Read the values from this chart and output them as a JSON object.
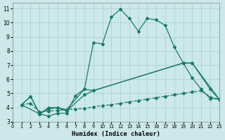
{
  "xlabel": "Humidex (Indice chaleur)",
  "bg_color": "#cce8e8",
  "grid_color": "#aad4d4",
  "line_color": "#1a7a6a",
  "xlim": [
    0,
    23
  ],
  "ylim": [
    3,
    11.4
  ],
  "xticks": [
    0,
    1,
    2,
    3,
    4,
    5,
    6,
    7,
    8,
    9,
    10,
    11,
    12,
    13,
    14,
    15,
    16,
    17,
    18,
    19,
    20,
    21,
    22,
    23
  ],
  "yticks": [
    3,
    4,
    5,
    6,
    7,
    8,
    9,
    10,
    11
  ],
  "curve1": {
    "x": [
      1,
      2,
      3,
      4,
      5,
      6,
      7,
      8,
      9,
      10,
      11,
      12,
      13,
      14,
      15,
      16,
      17,
      18,
      19,
      20,
      21,
      22,
      23
    ],
    "y": [
      4.2,
      4.8,
      3.55,
      3.4,
      3.6,
      3.6,
      4.85,
      5.3,
      8.6,
      8.5,
      10.4,
      10.95,
      10.3,
      9.4,
      10.3,
      10.2,
      9.8,
      8.3,
      7.15,
      6.1,
      5.3,
      4.65,
      4.6
    ]
  },
  "curve2": {
    "x": [
      1,
      2,
      3,
      4,
      5,
      6,
      8,
      9,
      19,
      20,
      22,
      23
    ],
    "y": [
      4.2,
      4.8,
      3.55,
      3.9,
      4.0,
      3.85,
      5.3,
      5.2,
      7.15,
      7.15,
      5.3,
      4.6
    ]
  },
  "curve3": {
    "x": [
      1,
      3,
      4,
      5,
      6,
      8,
      9,
      19,
      20,
      23
    ],
    "y": [
      4.2,
      3.55,
      4.0,
      4.0,
      3.75,
      4.9,
      5.2,
      7.15,
      7.15,
      4.6
    ]
  },
  "curve4": {
    "x": [
      1,
      2,
      3,
      4,
      5,
      6,
      7,
      8,
      9,
      10,
      11,
      12,
      13,
      14,
      15,
      16,
      17,
      18,
      19,
      20,
      21,
      22,
      23
    ],
    "y": [
      4.2,
      4.3,
      3.7,
      3.75,
      3.8,
      3.85,
      3.9,
      3.95,
      4.05,
      4.15,
      4.2,
      4.3,
      4.4,
      4.5,
      4.6,
      4.7,
      4.8,
      4.9,
      5.0,
      5.1,
      5.2,
      4.75,
      4.6
    ]
  }
}
